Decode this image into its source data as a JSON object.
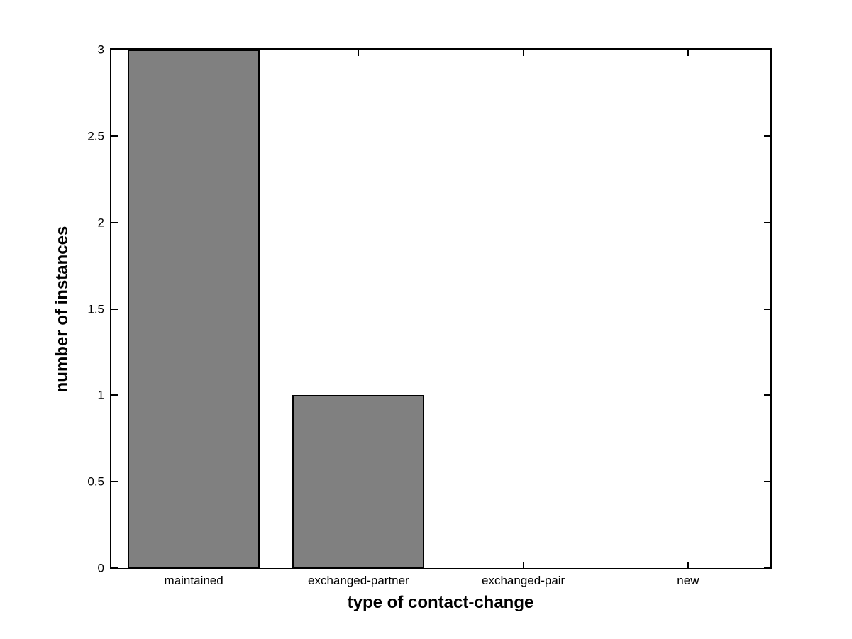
{
  "figure": {
    "background": "#ffffff"
  },
  "chart_data": {
    "type": "bar",
    "title": "",
    "xlabel": "type of contact-change",
    "ylabel": "number of instances",
    "categories": [
      "maintained",
      "exchanged-partner",
      "exchanged-pair",
      "new"
    ],
    "values": [
      3,
      1,
      0,
      0
    ],
    "ylim": [
      0,
      3
    ],
    "yticks": [
      0,
      0.5,
      1,
      1.5,
      2,
      2.5,
      3
    ],
    "ytick_labels": [
      "0",
      "0.5",
      "1",
      "1.5",
      "2",
      "2.5",
      "3"
    ],
    "bar_width_fraction": 0.8,
    "grid": false,
    "legend": null,
    "tick_direction": "in",
    "box": true,
    "colors": {
      "bar_face": "#808080",
      "bar_edge": "#000000",
      "axis": "#000000",
      "text": "#000000"
    }
  }
}
